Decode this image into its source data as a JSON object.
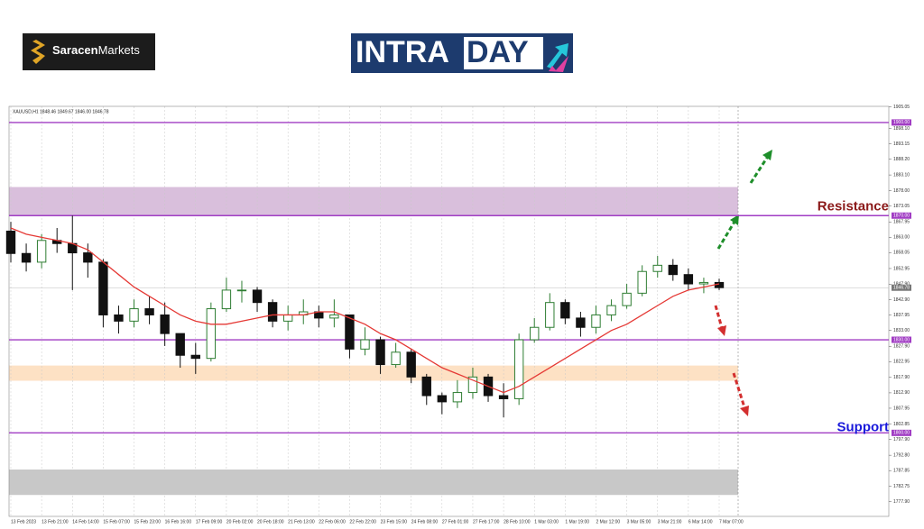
{
  "header": {
    "brand_a": "Saracen",
    "brand_b": "Markets",
    "title_a": "INTRA",
    "title_b": "DAY"
  },
  "chart_data": {
    "type": "candlestick",
    "symbol_info": "XAUUSD,H1  1848.46 1849.67 1846.00 1846.78",
    "categories": [
      "13 Feb 2023",
      null,
      "13 Feb 21:00",
      null,
      "14 Feb 14:00",
      null,
      "15 Feb 07:00",
      null,
      "15 Feb 23:00",
      null,
      "16 Feb 16:00",
      null,
      "17 Feb 09:00",
      null,
      "20 Feb 02:00",
      null,
      "20 Feb 18:00",
      null,
      "21 Feb 13:00",
      null,
      "22 Feb 06:00",
      null,
      "22 Feb 22:00",
      null,
      "23 Feb 15:00",
      null,
      "24 Feb 08:00",
      null,
      "27 Feb 01:00",
      null,
      "27 Feb 17:00",
      null,
      "28 Feb 10:00",
      null,
      "1 Mar 03:00",
      null,
      "1 Mar 19:00",
      null,
      "2 Mar 12:00",
      null,
      "3 Mar 05:00",
      null,
      "3 Mar 21:00",
      null,
      "6 Mar 14:00",
      null,
      "7 Mar 07:00"
    ],
    "open": [
      1865,
      1857.8,
      1855,
      1862,
      1861,
      1858,
      1855,
      1838,
      1836,
      1840,
      1838,
      1832,
      1825,
      1824,
      1840,
      1846,
      1846,
      1842,
      1836,
      1838,
      1839,
      1837,
      1838,
      1827,
      1830,
      1822,
      1826,
      1818,
      1812,
      1810,
      1813,
      1818,
      1812,
      1811,
      1830,
      1834,
      1842,
      1837,
      1834,
      1838,
      1841,
      1845,
      1852,
      1854,
      1851,
      1848,
      1848.46
    ],
    "high": [
      1868,
      1861,
      1864,
      1866,
      1870,
      1861,
      1856,
      1841,
      1843,
      1844,
      1842,
      1832,
      1829,
      1842,
      1850,
      1849,
      1847,
      1843,
      1841,
      1843,
      1841,
      1843,
      1838,
      1834,
      1831,
      1829,
      1827,
      1819,
      1813,
      1817,
      1821,
      1819,
      1816,
      1832,
      1837,
      1845,
      1843,
      1839,
      1841,
      1843,
      1848,
      1854,
      1857,
      1856,
      1853,
      1850,
      1849.67
    ],
    "low": [
      1854.9,
      1852,
      1853,
      1858,
      1846,
      1850,
      1834,
      1832,
      1834,
      1835,
      1828,
      1821,
      1819,
      1823,
      1839,
      1842,
      1839,
      1834,
      1833,
      1835,
      1834,
      1834,
      1824,
      1825,
      1819,
      1821,
      1816,
      1809,
      1806,
      1808,
      1811,
      1810,
      1805,
      1809,
      1829,
      1833,
      1835,
      1831,
      1832,
      1836,
      1840,
      1844,
      1850,
      1849,
      1846,
      1845,
      1846
    ],
    "close": [
      1857.8,
      1855,
      1862,
      1861,
      1858,
      1855,
      1838,
      1836,
      1840,
      1838,
      1832,
      1825,
      1824,
      1840,
      1846,
      1846,
      1842,
      1836,
      1838,
      1839,
      1837,
      1838,
      1827,
      1830,
      1822,
      1826,
      1818,
      1812,
      1810,
      1813,
      1818,
      1812,
      1811,
      1830,
      1834,
      1842,
      1837,
      1834,
      1838,
      1841,
      1845,
      1852,
      1854,
      1851,
      1848,
      1848.46,
      1846.78
    ],
    "up_color": "#2e7d32",
    "down_color": "#111111",
    "moving_average": {
      "color": "#e53935",
      "values": [
        1866,
        1864,
        1863,
        1862,
        1861,
        1859,
        1855,
        1851,
        1847,
        1844,
        1841,
        1838,
        1836,
        1835,
        1835,
        1836,
        1837,
        1838,
        1838,
        1838,
        1839,
        1839,
        1837,
        1835,
        1832,
        1830,
        1827,
        1824,
        1821,
        1819,
        1817,
        1815,
        1813,
        1815,
        1818,
        1821,
        1824,
        1827,
        1830,
        1833,
        1835,
        1838,
        1841,
        1844,
        1846,
        1847,
        1848
      ]
    },
    "ylim": [
      1773.1,
      1905.2
    ],
    "yticks": [
      1905.05,
      {
        "value": 1898.1,
        "label": "1898.10"
      },
      1893.15,
      {
        "value": 1888.2,
        "label": "1888.20"
      },
      {
        "value": 1883.1,
        "label": "1883.10"
      },
      {
        "value": 1878,
        "label": "1878.00"
      },
      1873.05,
      1867.95,
      {
        "value": 1863,
        "label": "1863.00"
      },
      1858.05,
      1852.95,
      {
        "value": 1847.9,
        "label": "1847.90"
      },
      {
        "value": 1842.9,
        "label": "1842.90"
      },
      1837.95,
      {
        "value": 1833,
        "label": "1833.00"
      },
      {
        "value": 1827.9,
        "label": "1827.90"
      },
      1822.95,
      {
        "value": 1817.9,
        "label": "1817.90"
      },
      {
        "value": 1812.9,
        "label": "1812.90"
      },
      1807.95,
      1802.85,
      {
        "value": 1797.9,
        "label": "1797.90"
      },
      {
        "value": 1792.8,
        "label": "1792.80"
      },
      1787.85,
      1782.75,
      {
        "value": 1777.9,
        "label": "1777.90"
      }
    ],
    "levels": [
      {
        "value": 1900,
        "label": "1900.00"
      },
      {
        "value": 1870,
        "label": "1870.00"
      },
      {
        "value": 1830,
        "label": "1830.00"
      },
      {
        "value": 1800,
        "label": "1800.00"
      }
    ],
    "level_color": "#a13dc4",
    "zones": [
      {
        "from": 1870,
        "to": 1879.2,
        "color": "#d9bfdc"
      },
      {
        "from": 1816.8,
        "to": 1821.7,
        "color": "#fde1c4"
      },
      {
        "from": 1780,
        "to": 1788.2,
        "color": "#c8c8c8"
      }
    ],
    "last_price": 1846.78,
    "annotations": [
      {
        "text": "Resistance",
        "color": "#8b1a1a",
        "at": 1872.8
      },
      {
        "text": "Support",
        "color": "#1a1adb",
        "at": 1801.7
      }
    ],
    "grid": true
  }
}
